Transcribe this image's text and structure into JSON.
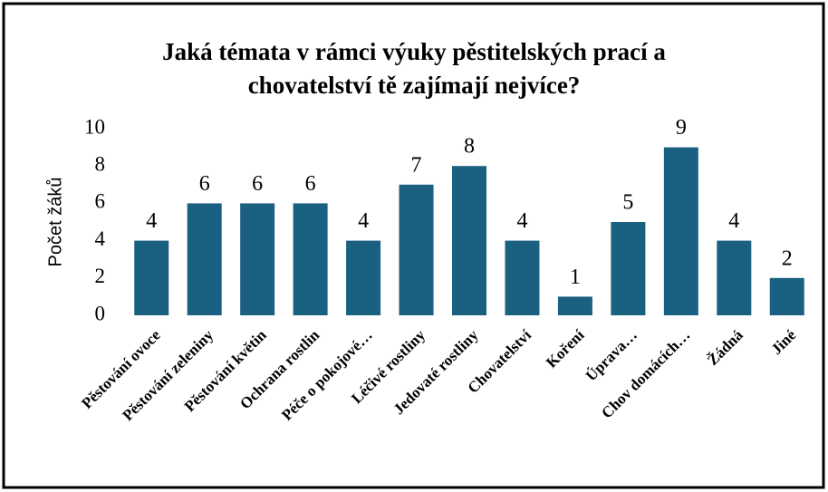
{
  "chart_data": {
    "type": "bar",
    "title": [
      "Jaká témata v rámci výuky pěstitelských prací a",
      "chovatelství tě zajímají nejvíce?"
    ],
    "y_label": "Počet žáků",
    "categories": [
      "Pěstování ovoce",
      "Pěstování zeleniny",
      "Pěstování květin",
      "Ochrana rostlin",
      "Péče o pokojové…",
      "Léčivé rostliny",
      "Jedovaté rostliny",
      "Chovatelství",
      "Koření",
      "Úprava…",
      "Chov domácích…",
      "Žádná",
      "Jiné"
    ],
    "values": [
      4,
      6,
      6,
      6,
      4,
      7,
      8,
      4,
      1,
      5,
      9,
      4,
      2
    ],
    "color": "#1a6080",
    "ylim": [
      0,
      10
    ],
    "yticks": [
      0,
      2,
      4,
      6,
      8,
      10
    ],
    "grid": false
  }
}
